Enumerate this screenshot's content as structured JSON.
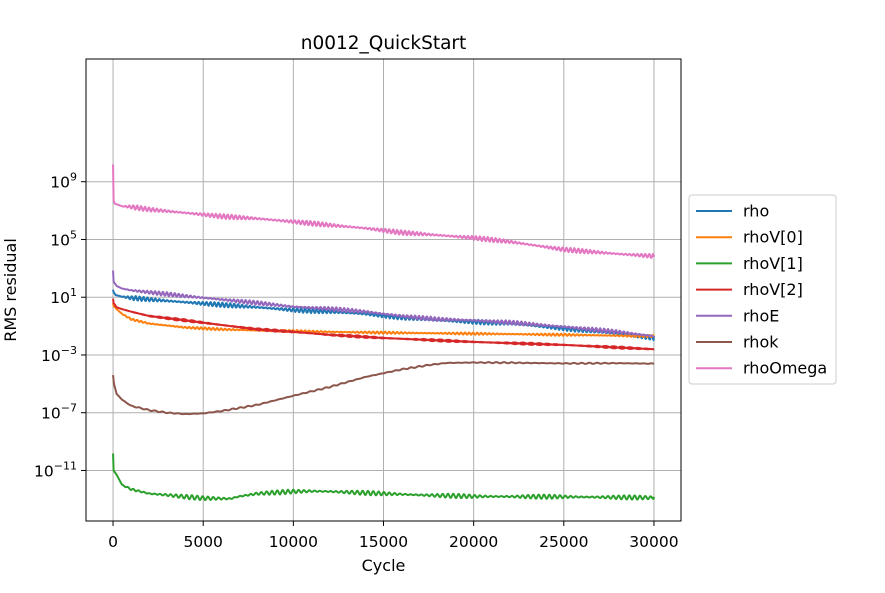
{
  "chart_data": {
    "type": "line",
    "title": "n0012_QuickStart",
    "xlabel": "Cycle",
    "ylabel": "RMS residual",
    "xscale": "linear",
    "yscale": "log",
    "xlim": [
      -1500,
      31500
    ],
    "ylim_log10": [
      -14.5,
      17.5
    ],
    "x_ticks": [
      0,
      5000,
      10000,
      15000,
      20000,
      25000,
      30000
    ],
    "x_tick_labels": [
      "0",
      "5000",
      "10000",
      "15000",
      "20000",
      "25000",
      "30000"
    ],
    "y_tick_exponents": [
      9,
      5,
      1,
      -3,
      -7,
      -11
    ],
    "y_tick_labels": [
      {
        "base": "10",
        "exp": "9"
      },
      {
        "base": "10",
        "exp": "5"
      },
      {
        "base": "10",
        "exp": "1"
      },
      {
        "base": "10",
        "exp": "−3"
      },
      {
        "base": "10",
        "exp": "−7"
      },
      {
        "base": "10",
        "exp": "−11"
      }
    ],
    "grid": true,
    "legend_position": "outside-right",
    "series": [
      {
        "name": "rho",
        "color": "#1f77b4",
        "noise": 0.16,
        "noiseFreq": 0.5,
        "points": [
          [
            0,
            33
          ],
          [
            30,
            22
          ],
          [
            150,
            14
          ],
          [
            500,
            11
          ],
          [
            1000,
            9
          ],
          [
            2000,
            7
          ],
          [
            4000,
            4.5
          ],
          [
            6000,
            3
          ],
          [
            8000,
            2
          ],
          [
            10000,
            1.3
          ],
          [
            12000,
            1
          ],
          [
            14000,
            0.7
          ],
          [
            16000,
            0.4
          ],
          [
            18000,
            0.25
          ],
          [
            20000,
            0.2
          ],
          [
            22000,
            0.15
          ],
          [
            25000,
            0.07
          ],
          [
            28000,
            0.03
          ],
          [
            30000,
            0.015
          ]
        ]
      },
      {
        "name": "rhoV[0]",
        "color": "#ff7f0e",
        "noise": 0.08,
        "noiseFreq": 0.6,
        "points": [
          [
            0,
            4
          ],
          [
            30,
            2.5
          ],
          [
            200,
            1.5
          ],
          [
            500,
            0.7
          ],
          [
            1000,
            0.3
          ],
          [
            2000,
            0.15
          ],
          [
            4000,
            0.08
          ],
          [
            6000,
            0.06
          ],
          [
            8000,
            0.05
          ],
          [
            10000,
            0.045
          ],
          [
            12000,
            0.04
          ],
          [
            15000,
            0.035
          ],
          [
            20000,
            0.03
          ],
          [
            25000,
            0.025
          ],
          [
            30000,
            0.02
          ]
        ]
      },
      {
        "name": "rhoV[1]",
        "color": "#2ca02c",
        "noise": 0.15,
        "noiseFreq": 0.45,
        "points": [
          [
            0,
            1.5e-10
          ],
          [
            30,
            1e-11
          ],
          [
            200,
            5e-12
          ],
          [
            500,
            1e-12
          ],
          [
            1000,
            5e-13
          ],
          [
            2000,
            2.5e-13
          ],
          [
            3000,
            2e-13
          ],
          [
            4000,
            1.5e-13
          ],
          [
            5000,
            1.2e-13
          ],
          [
            6500,
            1.1e-13
          ],
          [
            7000,
            1.6e-13
          ],
          [
            8000,
            2.5e-13
          ],
          [
            10000,
            3.5e-13
          ],
          [
            11000,
            3.7e-13
          ],
          [
            12000,
            3.5e-13
          ],
          [
            15000,
            2.5e-13
          ],
          [
            17000,
            2e-13
          ],
          [
            20000,
            1.6e-13
          ],
          [
            25000,
            1.5e-13
          ],
          [
            30000,
            1.3e-13
          ]
        ]
      },
      {
        "name": "rhoV[2]",
        "color": "#d62728",
        "noise": 0.08,
        "noiseFreq": 0.7,
        "points": [
          [
            0,
            8
          ],
          [
            30,
            4
          ],
          [
            200,
            2
          ],
          [
            500,
            1.5
          ],
          [
            1000,
            1
          ],
          [
            2000,
            0.5
          ],
          [
            4000,
            0.25
          ],
          [
            6000,
            0.12
          ],
          [
            8000,
            0.06
          ],
          [
            10000,
            0.04
          ],
          [
            12000,
            0.025
          ],
          [
            15000,
            0.015
          ],
          [
            20000,
            0.008
          ],
          [
            25000,
            0.005
          ],
          [
            30000,
            0.0025
          ]
        ]
      },
      {
        "name": "rhoE",
        "color": "#9467bd",
        "noise": 0.14,
        "noiseFreq": 0.5,
        "points": [
          [
            0,
            700
          ],
          [
            30,
            120
          ],
          [
            200,
            60
          ],
          [
            500,
            40
          ],
          [
            1000,
            30
          ],
          [
            2000,
            22
          ],
          [
            4000,
            12
          ],
          [
            6000,
            7
          ],
          [
            8000,
            4
          ],
          [
            10000,
            2.2
          ],
          [
            12000,
            1.6
          ],
          [
            14000,
            1
          ],
          [
            16000,
            0.5
          ],
          [
            18000,
            0.3
          ],
          [
            20000,
            0.25
          ],
          [
            22000,
            0.18
          ],
          [
            25000,
            0.09
          ],
          [
            28000,
            0.04
          ],
          [
            30000,
            0.02
          ]
        ]
      },
      {
        "name": "rhok",
        "color": "#8c564b",
        "noise": 0.04,
        "noiseFreq": 0.8,
        "points": [
          [
            0,
            4e-05
          ],
          [
            50,
            1e-05
          ],
          [
            200,
            2e-06
          ],
          [
            500,
            8e-07
          ],
          [
            1000,
            3e-07
          ],
          [
            2000,
            1.5e-07
          ],
          [
            3000,
            1e-07
          ],
          [
            4000,
            8e-08
          ],
          [
            5000,
            9e-08
          ],
          [
            6000,
            1.3e-07
          ],
          [
            8000,
            3.5e-07
          ],
          [
            10000,
            1.5e-06
          ],
          [
            12000,
            6e-06
          ],
          [
            14000,
            3e-05
          ],
          [
            16000,
            0.0001
          ],
          [
            17500,
            0.0002
          ],
          [
            18500,
            0.00028
          ],
          [
            20000,
            0.0003
          ],
          [
            22000,
            0.00029
          ],
          [
            25000,
            0.00026
          ],
          [
            28000,
            0.00027
          ],
          [
            30000,
            0.00025
          ]
        ]
      },
      {
        "name": "rhoOmega",
        "color": "#e377c2",
        "noise": 0.16,
        "noiseFreq": 0.5,
        "points": [
          [
            0,
            16000000000.0
          ],
          [
            30,
            50000000.0
          ],
          [
            100,
            30000000.0
          ],
          [
            500,
            20000000.0
          ],
          [
            1000,
            18000000.0
          ],
          [
            2000,
            12000000.0
          ],
          [
            4000,
            7000000.0
          ],
          [
            6000,
            4000000.0
          ],
          [
            8000,
            2800000.0
          ],
          [
            10000,
            1700000.0
          ],
          [
            12000,
            1000000.0
          ],
          [
            14000,
            600000.0
          ],
          [
            16000,
            300000.0
          ],
          [
            18000,
            200000.0
          ],
          [
            20000,
            130000.0
          ],
          [
            22000,
            70000.0
          ],
          [
            25000,
            20000.0
          ],
          [
            28000,
            10000.0
          ],
          [
            30000,
            7000.0
          ]
        ]
      }
    ]
  }
}
